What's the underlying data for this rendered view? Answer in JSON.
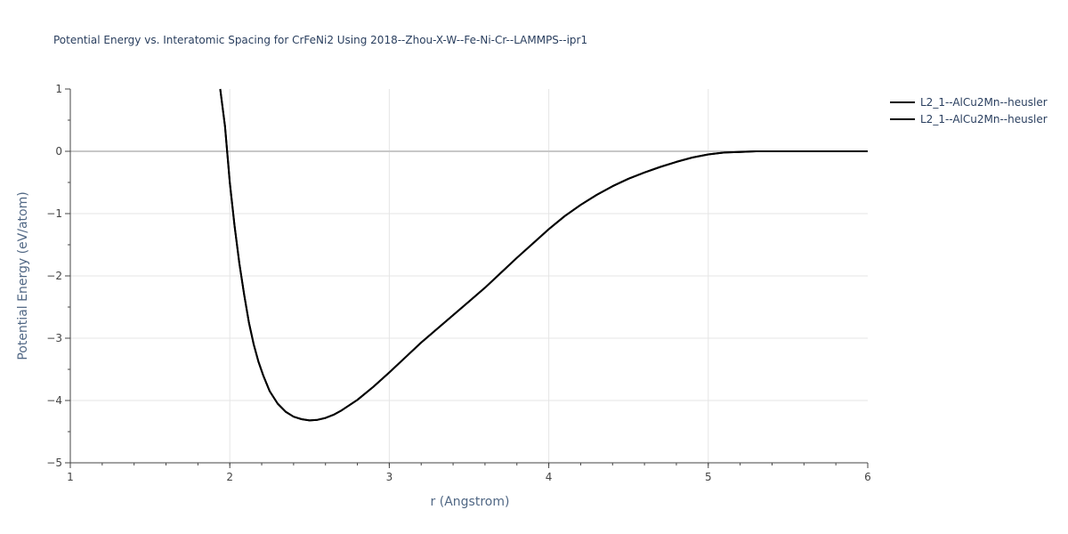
{
  "chart_data": {
    "type": "line",
    "title": "Potential Energy vs. Interatomic Spacing for CrFeNi2 Using 2018--Zhou-X-W--Fe-Ni-Cr--LAMMPS--ipr1",
    "xlabel": "r (Angstrom)",
    "ylabel": "Potential Energy (eV/atom)",
    "xlim": [
      1,
      6
    ],
    "ylim": [
      -5,
      1
    ],
    "x_ticks": [
      "1",
      "2",
      "3",
      "4",
      "5",
      "6"
    ],
    "y_ticks": [
      "1",
      "0",
      "−1",
      "−2",
      "−3",
      "−4",
      "−5"
    ],
    "grid": true,
    "legend_position": "top-right",
    "series": [
      {
        "name": "L2_1--AlCu2Mn--heusler",
        "color": "#000000",
        "x": [
          1.94,
          1.97,
          2.0,
          2.03,
          2.06,
          2.09,
          2.12,
          2.15,
          2.18,
          2.21,
          2.25,
          2.3,
          2.35,
          2.4,
          2.45,
          2.5,
          2.55,
          2.6,
          2.65,
          2.7,
          2.8,
          2.9,
          3.0,
          3.1,
          3.2,
          3.3,
          3.4,
          3.5,
          3.6,
          3.7,
          3.8,
          3.9,
          4.0,
          4.1,
          4.2,
          4.3,
          4.4,
          4.5,
          4.6,
          4.7,
          4.8,
          4.9,
          5.0,
          5.1,
          5.2,
          5.3,
          5.5,
          5.75,
          6.0
        ],
        "y": [
          1.0,
          0.4,
          -0.5,
          -1.2,
          -1.8,
          -2.3,
          -2.75,
          -3.1,
          -3.38,
          -3.6,
          -3.85,
          -4.05,
          -4.18,
          -4.26,
          -4.3,
          -4.32,
          -4.31,
          -4.28,
          -4.23,
          -4.16,
          -3.99,
          -3.78,
          -3.55,
          -3.31,
          -3.07,
          -2.85,
          -2.63,
          -2.41,
          -2.19,
          -1.95,
          -1.71,
          -1.48,
          -1.25,
          -1.04,
          -0.86,
          -0.7,
          -0.56,
          -0.44,
          -0.34,
          -0.25,
          -0.17,
          -0.1,
          -0.05,
          -0.02,
          -0.01,
          0.0,
          0.0,
          0.0,
          0.0
        ]
      },
      {
        "name": "L2_1--AlCu2Mn--heusler",
        "color": "#000000",
        "x": [
          1.94,
          1.97,
          2.0,
          2.03,
          2.06,
          2.09,
          2.12,
          2.15,
          2.18,
          2.21,
          2.25,
          2.3,
          2.35,
          2.4,
          2.45,
          2.5,
          2.55,
          2.6,
          2.65,
          2.7,
          2.8,
          2.9,
          3.0,
          3.1,
          3.2,
          3.3,
          3.4,
          3.5,
          3.6,
          3.7,
          3.8,
          3.9,
          4.0,
          4.1,
          4.2,
          4.3,
          4.4,
          4.5,
          4.6,
          4.7,
          4.8,
          4.9,
          5.0,
          5.1,
          5.2,
          5.3,
          5.5,
          5.75,
          6.0
        ],
        "y": [
          1.0,
          0.4,
          -0.5,
          -1.2,
          -1.8,
          -2.3,
          -2.75,
          -3.1,
          -3.38,
          -3.6,
          -3.85,
          -4.05,
          -4.18,
          -4.26,
          -4.3,
          -4.32,
          -4.31,
          -4.28,
          -4.23,
          -4.16,
          -3.99,
          -3.78,
          -3.55,
          -3.31,
          -3.07,
          -2.85,
          -2.63,
          -2.41,
          -2.19,
          -1.95,
          -1.71,
          -1.48,
          -1.25,
          -1.04,
          -0.86,
          -0.7,
          -0.56,
          -0.44,
          -0.34,
          -0.25,
          -0.17,
          -0.1,
          -0.05,
          -0.02,
          -0.01,
          0.0,
          0.0,
          0.0,
          0.0
        ]
      }
    ]
  }
}
